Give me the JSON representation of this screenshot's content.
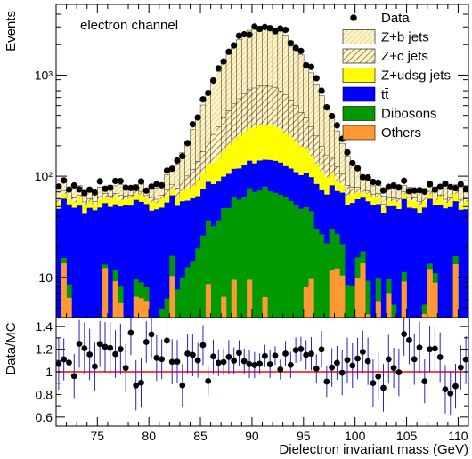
{
  "chart_data": [
    {
      "type": "bar",
      "stacked": true,
      "annotation": "electron channel",
      "ylabel": "Events",
      "yscale": "log",
      "ylim": [
        4,
        5000
      ],
      "xlim": [
        71,
        111
      ],
      "bin_width": 0.5,
      "ytick_labels": [
        "10",
        "10²",
        "10³"
      ],
      "legend_position": "top-right",
      "data_label": "Data",
      "series": [
        {
          "name": "Z+b jets",
          "color": "#fff5c8",
          "hatch": "thin-diagonal"
        },
        {
          "name": "Z+c jets",
          "color": "#fff5c8",
          "hatch": "thick-diagonal"
        },
        {
          "name": "Z+udsg jets",
          "color": "#ffff00"
        },
        {
          "name": "tt̄",
          "color": "#0000ff"
        },
        {
          "name": "Dibosons",
          "color": "#009900"
        },
        {
          "name": "Others",
          "color": "#ff9933"
        }
      ]
    },
    {
      "type": "scatter",
      "ylabel": "Data/MC",
      "xlabel": "Dielectron invariant mass (GeV)",
      "xlim": [
        71,
        111
      ],
      "ylim": [
        0.52,
        1.48
      ],
      "xticks": [
        75,
        80,
        85,
        90,
        95,
        100,
        105,
        110
      ],
      "yticks": [
        0.6,
        0.8,
        1.0,
        1.2,
        1.4
      ],
      "ytick_labels": [
        "0.6",
        "0.8",
        "1",
        "1.2",
        "1.4"
      ],
      "reference_line": 1.0,
      "reference_color": "#ff0000"
    }
  ]
}
